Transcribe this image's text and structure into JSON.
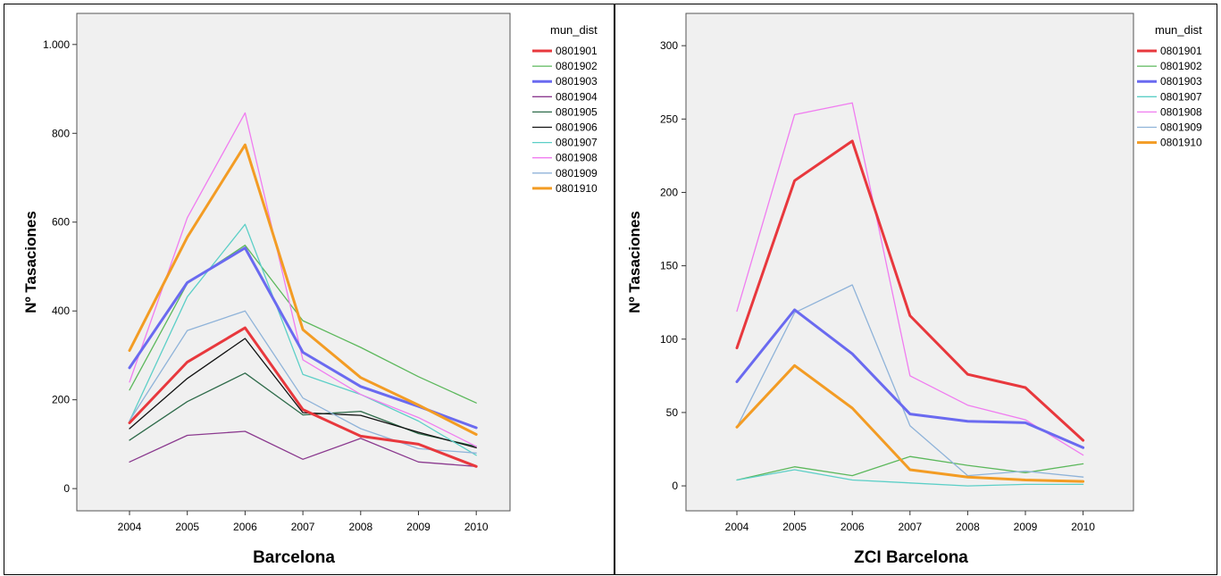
{
  "chart_data": [
    {
      "type": "line",
      "title": "Barcelona",
      "ylabel": "Nº Tasaciones",
      "xlabel": "",
      "x": [
        "2004",
        "2005",
        "2006",
        "2007",
        "2008",
        "2009",
        "2010"
      ],
      "ylim": [
        -50,
        1070
      ],
      "yticks": [
        0,
        200,
        400,
        600,
        800,
        1000
      ],
      "ytick_labels": [
        "0",
        "200",
        "400",
        "600",
        "800",
        "1.000"
      ],
      "legend_title": "mun_dist",
      "legend_position": "right",
      "grid": false,
      "series": [
        {
          "name": "0801901",
          "color": "#e8383d",
          "width": 3,
          "values": [
            148,
            285,
            362,
            178,
            118,
            100,
            50
          ]
        },
        {
          "name": "0801902",
          "color": "#5cb85c",
          "width": 1.3,
          "values": [
            222,
            462,
            548,
            378,
            318,
            252,
            193
          ]
        },
        {
          "name": "0801903",
          "color": "#6a6af0",
          "width": 3,
          "values": [
            272,
            464,
            542,
            307,
            230,
            185,
            137
          ]
        },
        {
          "name": "0801904",
          "color": "#8b3a8f",
          "width": 1.3,
          "values": [
            60,
            120,
            129,
            66,
            113,
            60,
            50
          ]
        },
        {
          "name": "0801905",
          "color": "#2e6b4a",
          "width": 1.3,
          "values": [
            109,
            196,
            260,
            166,
            174,
            124,
            95
          ]
        },
        {
          "name": "0801906",
          "color": "#111111",
          "width": 1.3,
          "values": [
            135,
            248,
            338,
            171,
            165,
            127,
            92
          ]
        },
        {
          "name": "0801907",
          "color": "#5ccfc7",
          "width": 1.3,
          "values": [
            152,
            432,
            595,
            257,
            212,
            152,
            75
          ]
        },
        {
          "name": "0801908",
          "color": "#f07cf0",
          "width": 1.3,
          "values": [
            240,
            610,
            846,
            290,
            212,
            160,
            95
          ]
        },
        {
          "name": "0801909",
          "color": "#8fb3d9",
          "width": 1.3,
          "values": [
            153,
            356,
            400,
            204,
            135,
            90,
            80
          ]
        },
        {
          "name": "0801910",
          "color": "#f39c24",
          "width": 3,
          "values": [
            311,
            566,
            774,
            358,
            250,
            188,
            122
          ]
        }
      ]
    },
    {
      "type": "line",
      "title": "ZCI Barcelona",
      "ylabel": "Nº Tasaciones",
      "xlabel": "",
      "x": [
        "2004",
        "2005",
        "2006",
        "2007",
        "2008",
        "2009",
        "2010"
      ],
      "ylim": [
        -17,
        322
      ],
      "yticks": [
        0,
        50,
        100,
        150,
        200,
        250,
        300
      ],
      "ytick_labels": [
        "0",
        "50",
        "100",
        "150",
        "200",
        "250",
        "300"
      ],
      "legend_title": "mun_dist",
      "legend_position": "right",
      "grid": false,
      "series": [
        {
          "name": "0801901",
          "color": "#e8383d",
          "width": 3,
          "values": [
            94,
            208,
            235,
            116,
            76,
            67,
            31
          ]
        },
        {
          "name": "0801902",
          "color": "#5cb85c",
          "width": 1.3,
          "values": [
            4,
            13,
            7,
            20,
            14,
            9,
            15
          ]
        },
        {
          "name": "0801903",
          "color": "#6a6af0",
          "width": 3,
          "values": [
            71,
            120,
            90,
            49,
            44,
            43,
            26
          ]
        },
        {
          "name": "0801907",
          "color": "#5ccfc7",
          "width": 1.3,
          "values": [
            4,
            11,
            4,
            2,
            0,
            1,
            1
          ]
        },
        {
          "name": "0801908",
          "color": "#f07cf0",
          "width": 1.3,
          "values": [
            119,
            253,
            261,
            75,
            55,
            45,
            21
          ]
        },
        {
          "name": "0801909",
          "color": "#8fb3d9",
          "width": 1.3,
          "values": [
            40,
            118,
            137,
            41,
            7,
            10,
            6
          ]
        },
        {
          "name": "0801910",
          "color": "#f39c24",
          "width": 3,
          "values": [
            40,
            82,
            53,
            11,
            6,
            4,
            3
          ]
        }
      ]
    }
  ]
}
